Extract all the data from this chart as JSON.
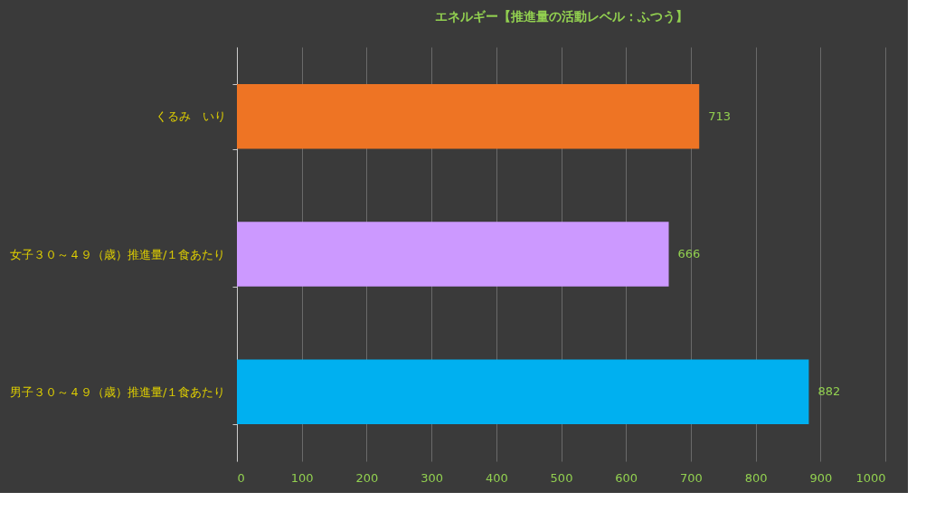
{
  "chart_data": {
    "type": "bar",
    "orientation": "horizontal",
    "title": "エネルギー【推進量の活動レベル：ふつう】",
    "categories": [
      "くるみ　いり",
      "女子３０～４９（歳）推進量/１食あたり",
      "男子３０～４９（歳）推進量/１食あたり"
    ],
    "values": [
      713,
      666,
      882
    ],
    "colors": [
      "#ee7424",
      "#cc99ff",
      "#00b0f0"
    ],
    "xlim": [
      0,
      1000
    ],
    "xticks": [
      0,
      100,
      200,
      300,
      400,
      500,
      600,
      700,
      800,
      900,
      1000
    ],
    "grid": "x",
    "data_labels": true
  }
}
